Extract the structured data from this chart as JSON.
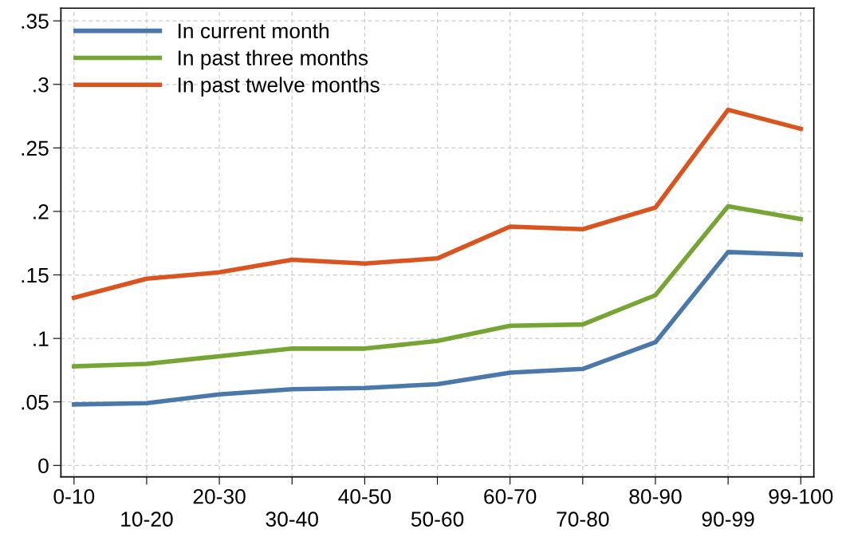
{
  "chart_data": {
    "type": "line",
    "categories": [
      "0-10",
      "10-20",
      "20-30",
      "30-40",
      "40-50",
      "50-60",
      "60-70",
      "70-80",
      "80-90",
      "90-99",
      "99-100"
    ],
    "series": [
      {
        "name": "In current month",
        "color": "#4a78ab",
        "values": [
          0.048,
          0.049,
          0.056,
          0.06,
          0.061,
          0.064,
          0.073,
          0.076,
          0.097,
          0.168,
          0.166
        ]
      },
      {
        "name": "In past three months",
        "color": "#76a534",
        "values": [
          0.078,
          0.08,
          0.086,
          0.092,
          0.092,
          0.098,
          0.11,
          0.111,
          0.134,
          0.204,
          0.194
        ]
      },
      {
        "name": "In past twelve months",
        "color": "#d9541e",
        "values": [
          0.132,
          0.147,
          0.152,
          0.162,
          0.159,
          0.163,
          0.188,
          0.186,
          0.203,
          0.28,
          0.265
        ]
      }
    ],
    "ylim": [
      -0.009,
      0.36
    ],
    "yticks": [
      {
        "value": 0,
        "label": "0"
      },
      {
        "value": 0.05,
        "label": ".05"
      },
      {
        "value": 0.1,
        "label": ".1"
      },
      {
        "value": 0.15,
        "label": ".15"
      },
      {
        "value": 0.2,
        "label": ".2"
      },
      {
        "value": 0.25,
        "label": ".25"
      },
      {
        "value": 0.3,
        "label": ".3"
      },
      {
        "value": 0.35,
        "label": ".35"
      }
    ],
    "grid": true,
    "legend": "top left",
    "line_style": "solid",
    "marker": "none"
  }
}
